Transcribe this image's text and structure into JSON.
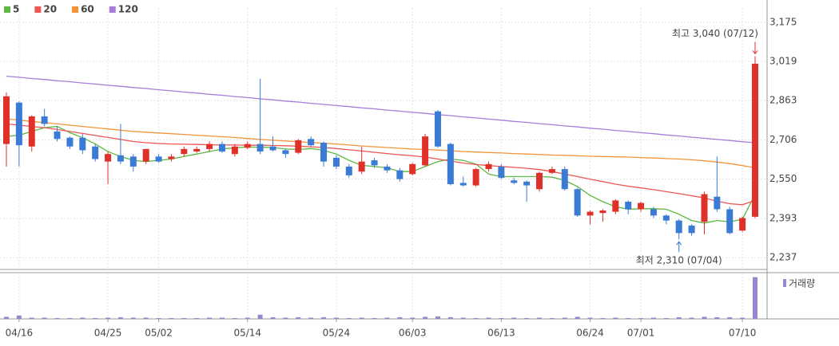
{
  "chart_data": {
    "type": "candlestick",
    "categories": [
      null,
      "04/16",
      null,
      null,
      null,
      null,
      null,
      null,
      "04/25",
      null,
      null,
      null,
      "05/02",
      null,
      null,
      null,
      null,
      null,
      null,
      "05/14",
      null,
      null,
      null,
      null,
      null,
      null,
      "05/24",
      null,
      null,
      null,
      null,
      null,
      "06/03",
      null,
      null,
      null,
      null,
      null,
      null,
      "06/13",
      null,
      null,
      null,
      null,
      null,
      null,
      "06/24",
      null,
      null,
      null,
      "07/01",
      null,
      null,
      null,
      null,
      null,
      null,
      null,
      "07/10",
      null
    ],
    "open": [
      2690,
      2855,
      2680,
      2800,
      2740,
      2715,
      2715,
      2680,
      2620,
      2645,
      2640,
      2620,
      2640,
      2630,
      2650,
      2660,
      2670,
      2690,
      2650,
      2675,
      2690,
      2680,
      2665,
      2655,
      2710,
      2695,
      2635,
      2600,
      2580,
      2625,
      2600,
      2585,
      2570,
      2605,
      2820,
      2690,
      2535,
      2525,
      2590,
      2600,
      2545,
      2540,
      2510,
      2575,
      2590,
      2510,
      2405,
      2415,
      2420,
      2460,
      2430,
      2430,
      2405,
      2385,
      2365,
      2380,
      2480,
      2430,
      2345,
      2400
    ],
    "high": [
      2895,
      2860,
      2805,
      2830,
      2760,
      2720,
      2730,
      2690,
      2660,
      2770,
      2650,
      2670,
      2650,
      2650,
      2680,
      2680,
      2700,
      2700,
      2690,
      2700,
      2950,
      2720,
      2670,
      2710,
      2720,
      2700,
      2645,
      2610,
      2680,
      2635,
      2610,
      2595,
      2615,
      2730,
      2825,
      2695,
      2560,
      2595,
      2620,
      2610,
      2555,
      2545,
      2580,
      2600,
      2600,
      2515,
      2425,
      2430,
      2470,
      2465,
      2460,
      2440,
      2410,
      2390,
      2370,
      2500,
      2640,
      2440,
      2400,
      3040
    ],
    "low": [
      2600,
      2600,
      2660,
      2760,
      2700,
      2670,
      2650,
      2620,
      2530,
      2610,
      2580,
      2610,
      2615,
      2620,
      2640,
      2655,
      2660,
      2655,
      2640,
      2670,
      2650,
      2660,
      2635,
      2650,
      2680,
      2600,
      2590,
      2555,
      2570,
      2595,
      2575,
      2540,
      2565,
      2600,
      2675,
      2525,
      2520,
      2520,
      2580,
      2550,
      2530,
      2460,
      2500,
      2570,
      2505,
      2400,
      2370,
      2380,
      2410,
      2410,
      2420,
      2395,
      2370,
      2310,
      2325,
      2330,
      2420,
      2330,
      2340,
      2395
    ],
    "close": [
      2880,
      2685,
      2800,
      2770,
      2710,
      2680,
      2665,
      2630,
      2650,
      2620,
      2600,
      2670,
      2620,
      2640,
      2670,
      2670,
      2690,
      2660,
      2680,
      2690,
      2660,
      2665,
      2650,
      2705,
      2685,
      2620,
      2600,
      2565,
      2620,
      2605,
      2585,
      2550,
      2610,
      2720,
      2680,
      2530,
      2525,
      2590,
      2610,
      2555,
      2535,
      2525,
      2575,
      2590,
      2510,
      2405,
      2420,
      2425,
      2465,
      2430,
      2455,
      2405,
      2385,
      2335,
      2335,
      2490,
      2430,
      2335,
      2395,
      3010
    ],
    "up_color": "#e0302a",
    "down_color": "#3a7bd5",
    "ylim": [
      2190,
      3232
    ],
    "yticks": [
      {
        "value": 2237,
        "label": "2,237"
      },
      {
        "value": 2393,
        "label": "2,393"
      },
      {
        "value": 2550,
        "label": "2,550"
      },
      {
        "value": 2706,
        "label": "2,706"
      },
      {
        "value": 2863,
        "label": "2,863"
      },
      {
        "value": 3019,
        "label": "3,019"
      },
      {
        "value": 3175,
        "label": "3,175"
      }
    ],
    "grid": true,
    "series": [
      {
        "name": "5",
        "color": "#5cb840",
        "values": [
          2720,
          2725,
          2740,
          2755,
          2760,
          2735,
          2715,
          2690,
          2660,
          2640,
          2625,
          2620,
          2625,
          2630,
          2640,
          2650,
          2660,
          2670,
          2675,
          2678,
          2677,
          2676,
          2670,
          2668,
          2672,
          2665,
          2650,
          2625,
          2605,
          2600,
          2595,
          2580,
          2580,
          2600,
          2620,
          2630,
          2625,
          2610,
          2570,
          2560,
          2560,
          2560,
          2560,
          2558,
          2545,
          2520,
          2485,
          2460,
          2440,
          2430,
          2432,
          2432,
          2430,
          2410,
          2385,
          2375,
          2385,
          2380,
          2390,
          2490
        ]
      },
      {
        "name": "20",
        "color": "#ee5555",
        "values": [
          2770,
          2765,
          2760,
          2755,
          2748,
          2740,
          2732,
          2724,
          2716,
          2708,
          2700,
          2695,
          2692,
          2690,
          2689,
          2688,
          2687,
          2686,
          2686,
          2685,
          2685,
          2684,
          2683,
          2681,
          2679,
          2676,
          2672,
          2667,
          2662,
          2657,
          2652,
          2647,
          2643,
          2638,
          2630,
          2622,
          2614,
          2608,
          2604,
          2600,
          2597,
          2593,
          2588,
          2580,
          2570,
          2560,
          2550,
          2540,
          2530,
          2522,
          2515,
          2508,
          2500,
          2492,
          2484,
          2475,
          2462,
          2452,
          2448,
          2465
        ]
      },
      {
        "name": "60",
        "color": "#f3943a",
        "values": [
          2790,
          2785,
          2780,
          2775,
          2770,
          2765,
          2760,
          2755,
          2750,
          2745,
          2740,
          2737,
          2734,
          2731,
          2728,
          2725,
          2722,
          2719,
          2716,
          2712,
          2708,
          2705,
          2702,
          2699,
          2696,
          2693,
          2690,
          2686,
          2682,
          2679,
          2676,
          2673,
          2670,
          2668,
          2666,
          2663,
          2660,
          2658,
          2656,
          2654,
          2652,
          2650,
          2648,
          2646,
          2645,
          2643,
          2641,
          2640,
          2639,
          2638,
          2636,
          2634,
          2632,
          2630,
          2627,
          2623,
          2618,
          2612,
          2604,
          2595
        ]
      },
      {
        "name": "120",
        "color": "#a77ddc",
        "values": [
          2960,
          2956,
          2951,
          2947,
          2942,
          2938,
          2933,
          2929,
          2924,
          2920,
          2915,
          2911,
          2906,
          2902,
          2897,
          2893,
          2888,
          2884,
          2879,
          2875,
          2870,
          2866,
          2861,
          2857,
          2852,
          2848,
          2843,
          2839,
          2834,
          2830,
          2825,
          2821,
          2816,
          2812,
          2807,
          2803,
          2798,
          2794,
          2789,
          2785,
          2780,
          2776,
          2771,
          2767,
          2762,
          2758,
          2753,
          2749,
          2744,
          2740,
          2735,
          2731,
          2726,
          2722,
          2717,
          2713,
          2708,
          2704,
          2699,
          2695
        ]
      }
    ],
    "volume": {
      "name": "거래량",
      "color": "#9a86cf",
      "ylim": [
        0,
        105
      ],
      "values": [
        5,
        8,
        3,
        3,
        2,
        2,
        3,
        2,
        3,
        4,
        3,
        3,
        2,
        2,
        2,
        2,
        3,
        3,
        2,
        3,
        10,
        4,
        3,
        4,
        3,
        4,
        3,
        2,
        3,
        2,
        3,
        4,
        3,
        5,
        6,
        4,
        3,
        2,
        3,
        2,
        3,
        2,
        3,
        2,
        3,
        5,
        3,
        2,
        3,
        2,
        2,
        3,
        2,
        4,
        3,
        5,
        4,
        4,
        3,
        100
      ]
    },
    "annotations": [
      {
        "text": "최고 3,040 (07/12)",
        "color": "#e0302a"
      },
      {
        "text": "최저 2,310 (07/04)",
        "color": "#2f7ad0"
      }
    ]
  }
}
